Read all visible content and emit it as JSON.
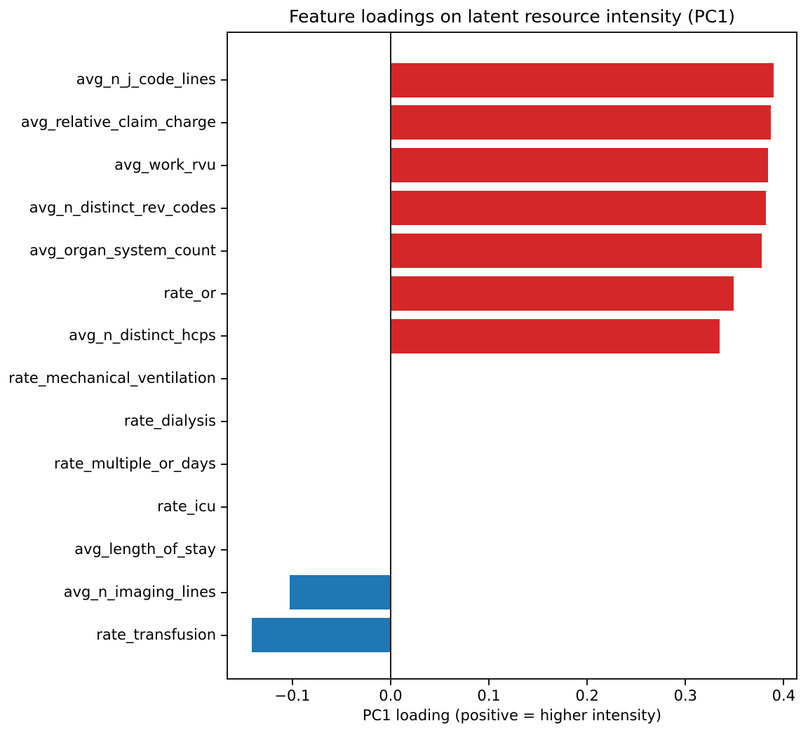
{
  "chart_data": {
    "type": "bar",
    "orientation": "horizontal",
    "title": "Feature loadings on latent resource intensity (PC1)",
    "xlabel": "PC1 loading (positive = higher intensity)",
    "ylabel": "",
    "categories": [
      "avg_n_j_code_lines",
      "avg_relative_claim_charge",
      "avg_work_rvu",
      "avg_n_distinct_rev_codes",
      "avg_organ_system_count",
      "rate_or",
      "avg_n_distinct_hcps",
      "rate_mechanical_ventilation",
      "rate_dialysis",
      "rate_multiple_or_days",
      "rate_icu",
      "avg_length_of_stay",
      "avg_n_imaging_lines",
      "rate_transfusion"
    ],
    "values": [
      0.389,
      0.386,
      0.383,
      0.381,
      0.377,
      0.348,
      0.334,
      0.0,
      0.0,
      0.0,
      0.0,
      0.0,
      -0.103,
      -0.141
    ],
    "x_ticks": [
      -0.1,
      0.0,
      0.1,
      0.2,
      0.3,
      0.4
    ],
    "x_tick_labels": [
      "−0.1",
      "0.0",
      "0.1",
      "0.2",
      "0.3",
      "0.4"
    ],
    "xlim": [
      -0.167,
      0.414
    ],
    "grid": false,
    "zero_line": true,
    "legend": null,
    "positive_color": "#d62728",
    "negative_color": "#1f77b4",
    "axis_color": "#1a1a1a"
  }
}
